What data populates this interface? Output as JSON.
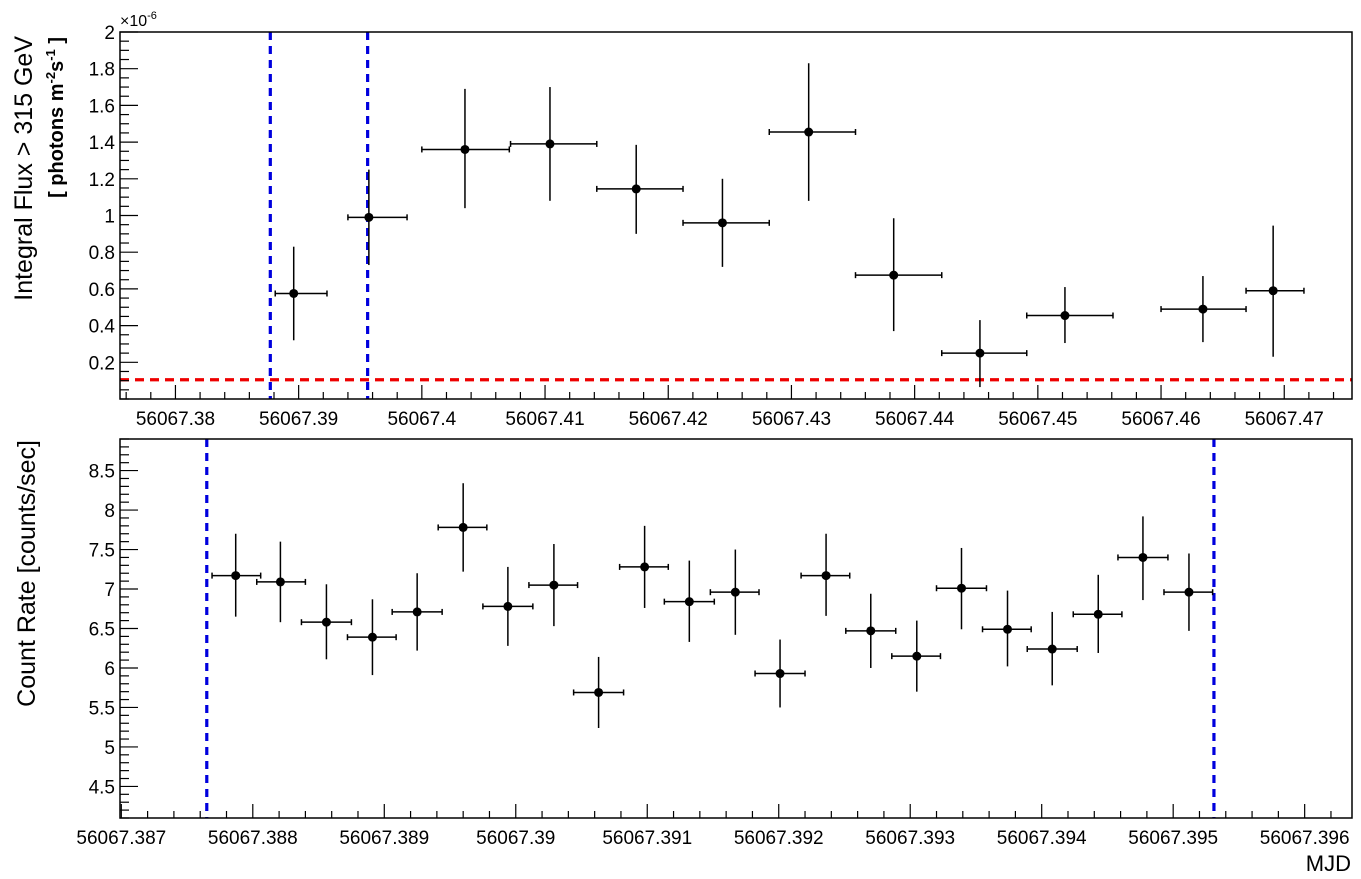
{
  "chart_data": [
    {
      "type": "scatter",
      "panel": "top",
      "ylabel": "Integral Flux > 315 GeV",
      "ylabel_units": {
        "open": "[ photons m",
        "sup1": "-2",
        "mid": "s",
        "sup2": "-1",
        "close": " ]"
      },
      "y_multiplier": {
        "base": "×10",
        "exp": "-6"
      },
      "xlim": [
        56067.3755,
        56067.4755
      ],
      "ylim": [
        0.0,
        2.0
      ],
      "x_ticks": [
        56067.38,
        56067.39,
        56067.4,
        56067.41,
        56067.42,
        56067.43,
        56067.44,
        56067.45,
        56067.46,
        56067.47
      ],
      "x_tick_labels": [
        "56067.38",
        "56067.39",
        "56067.4",
        "56067.41",
        "56067.42",
        "56067.43",
        "56067.44",
        "56067.45",
        "56067.46",
        "56067.47"
      ],
      "y_ticks": [
        0.2,
        0.4,
        0.6,
        0.8,
        1.0,
        1.2,
        1.4,
        1.6,
        1.8,
        2.0
      ],
      "y_tick_labels": [
        "0.2",
        "0.4",
        "0.6",
        "0.8",
        "1",
        "1.2",
        "1.4",
        "1.6",
        "1.8",
        "2"
      ],
      "series": [
        {
          "color": "#000000",
          "points": [
            {
              "x": 56067.3896,
              "y": 0.575,
              "xlo": 56067.3881,
              "xhi": 56067.3923,
              "ylo": 0.32,
              "yhi": 0.83
            },
            {
              "x": 56067.3957,
              "y": 0.99,
              "xlo": 56067.394,
              "xhi": 56067.3988,
              "ylo": 0.73,
              "yhi": 1.25
            },
            {
              "x": 56067.4035,
              "y": 1.36,
              "xlo": 56067.4,
              "xhi": 56067.4071,
              "ylo": 1.04,
              "yhi": 1.69
            },
            {
              "x": 56067.4104,
              "y": 1.39,
              "xlo": 56067.4072,
              "xhi": 56067.4142,
              "ylo": 1.08,
              "yhi": 1.7
            },
            {
              "x": 56067.4174,
              "y": 1.145,
              "xlo": 56067.4142,
              "xhi": 56067.4212,
              "ylo": 0.9,
              "yhi": 1.385
            },
            {
              "x": 56067.4244,
              "y": 0.96,
              "xlo": 56067.4212,
              "xhi": 56067.4282,
              "ylo": 0.72,
              "yhi": 1.2
            },
            {
              "x": 56067.4314,
              "y": 1.455,
              "xlo": 56067.4282,
              "xhi": 56067.4352,
              "ylo": 1.08,
              "yhi": 1.83
            },
            {
              "x": 56067.4383,
              "y": 0.675,
              "xlo": 56067.4352,
              "xhi": 56067.4422,
              "ylo": 0.37,
              "yhi": 0.985
            },
            {
              "x": 56067.4453,
              "y": 0.25,
              "xlo": 56067.4422,
              "xhi": 56067.4491,
              "ylo": 0.065,
              "yhi": 0.43
            },
            {
              "x": 56067.4522,
              "y": 0.455,
              "xlo": 56067.4491,
              "xhi": 56067.4561,
              "ylo": 0.305,
              "yhi": 0.61
            },
            {
              "x": 56067.4634,
              "y": 0.49,
              "xlo": 56067.46,
              "xhi": 56067.4669,
              "ylo": 0.31,
              "yhi": 0.67
            },
            {
              "x": 56067.4691,
              "y": 0.59,
              "xlo": 56067.4669,
              "xhi": 56067.4716,
              "ylo": 0.23,
              "yhi": 0.945
            }
          ]
        }
      ],
      "reference_lines": [
        {
          "orientation": "vertical",
          "x": 56067.3877,
          "color": "#0000dd",
          "style": "dashed"
        },
        {
          "orientation": "vertical",
          "x": 56067.3956,
          "color": "#0000dd",
          "style": "dashed"
        },
        {
          "orientation": "horizontal",
          "y": 0.105,
          "color": "#ee0000",
          "style": "dashed"
        }
      ]
    },
    {
      "type": "scatter",
      "panel": "bottom",
      "xlabel": "MJD",
      "ylabel": "Count Rate [counts/sec]",
      "xlim": [
        56067.38699,
        56067.39636
      ],
      "ylim": [
        4.1,
        8.9
      ],
      "x_ticks": [
        56067.387,
        56067.388,
        56067.389,
        56067.39,
        56067.391,
        56067.392,
        56067.393,
        56067.394,
        56067.395,
        56067.396
      ],
      "x_tick_labels": [
        "56067.387",
        "56067.388",
        "56067.389",
        "56067.39",
        "56067.391",
        "56067.392",
        "56067.393",
        "56067.394",
        "56067.395",
        "56067.396"
      ],
      "y_ticks": [
        4.5,
        5.0,
        5.5,
        6.0,
        6.5,
        7.0,
        7.5,
        8.0,
        8.5
      ],
      "y_tick_labels": [
        "4.5",
        "5",
        "5.5",
        "6",
        "6.5",
        "7",
        "7.5",
        "8",
        "8.5"
      ],
      "series": [
        {
          "color": "#000000",
          "points": [
            {
              "x": 56067.38787,
              "y": 7.17,
              "xlo": 56067.38769,
              "xhi": 56067.38806,
              "ylo": 6.65,
              "yhi": 7.7
            },
            {
              "x": 56067.38821,
              "y": 7.09,
              "xlo": 56067.38803,
              "xhi": 56067.3884,
              "ylo": 6.58,
              "yhi": 7.6
            },
            {
              "x": 56067.38856,
              "y": 6.58,
              "xlo": 56067.38837,
              "xhi": 56067.38875,
              "ylo": 6.11,
              "yhi": 7.06
            },
            {
              "x": 56067.38891,
              "y": 6.39,
              "xlo": 56067.38872,
              "xhi": 56067.38909,
              "ylo": 5.91,
              "yhi": 6.87
            },
            {
              "x": 56067.38925,
              "y": 6.71,
              "xlo": 56067.38906,
              "xhi": 56067.38944,
              "ylo": 6.22,
              "yhi": 7.2
            },
            {
              "x": 56067.3896,
              "y": 7.78,
              "xlo": 56067.38941,
              "xhi": 56067.38978,
              "ylo": 7.22,
              "yhi": 8.34
            },
            {
              "x": 56067.38994,
              "y": 6.78,
              "xlo": 56067.38975,
              "xhi": 56067.39013,
              "ylo": 6.28,
              "yhi": 7.28
            },
            {
              "x": 56067.39029,
              "y": 7.05,
              "xlo": 56067.3901,
              "xhi": 56067.39047,
              "ylo": 6.53,
              "yhi": 7.57
            },
            {
              "x": 56067.39063,
              "y": 5.69,
              "xlo": 56067.39044,
              "xhi": 56067.39082,
              "ylo": 5.24,
              "yhi": 6.14
            },
            {
              "x": 56067.39098,
              "y": 7.28,
              "xlo": 56067.39079,
              "xhi": 56067.39116,
              "ylo": 6.76,
              "yhi": 7.8
            },
            {
              "x": 56067.39132,
              "y": 6.84,
              "xlo": 56067.39113,
              "xhi": 56067.39151,
              "ylo": 6.33,
              "yhi": 7.36
            },
            {
              "x": 56067.39167,
              "y": 6.96,
              "xlo": 56067.39148,
              "xhi": 56067.39185,
              "ylo": 6.42,
              "yhi": 7.5
            },
            {
              "x": 56067.39201,
              "y": 5.93,
              "xlo": 56067.39182,
              "xhi": 56067.3922,
              "ylo": 5.5,
              "yhi": 6.36
            },
            {
              "x": 56067.39236,
              "y": 7.17,
              "xlo": 56067.39217,
              "xhi": 56067.39254,
              "ylo": 6.66,
              "yhi": 7.7
            },
            {
              "x": 56067.3927,
              "y": 6.47,
              "xlo": 56067.39251,
              "xhi": 56067.39289,
              "ylo": 6.0,
              "yhi": 6.94
            },
            {
              "x": 56067.39305,
              "y": 6.15,
              "xlo": 56067.39286,
              "xhi": 56067.39323,
              "ylo": 5.7,
              "yhi": 6.6
            },
            {
              "x": 56067.39339,
              "y": 7.01,
              "xlo": 56067.3932,
              "xhi": 56067.39358,
              "ylo": 6.49,
              "yhi": 7.52
            },
            {
              "x": 56067.39374,
              "y": 6.49,
              "xlo": 56067.39355,
              "xhi": 56067.39392,
              "ylo": 6.02,
              "yhi": 6.98
            },
            {
              "x": 56067.39408,
              "y": 6.24,
              "xlo": 56067.39389,
              "xhi": 56067.39427,
              "ylo": 5.78,
              "yhi": 6.71
            },
            {
              "x": 56067.39443,
              "y": 6.68,
              "xlo": 56067.39424,
              "xhi": 56067.39461,
              "ylo": 6.19,
              "yhi": 7.18
            },
            {
              "x": 56067.39477,
              "y": 7.4,
              "xlo": 56067.39458,
              "xhi": 56067.39496,
              "ylo": 6.86,
              "yhi": 7.92
            },
            {
              "x": 56067.39512,
              "y": 6.96,
              "xlo": 56067.39493,
              "xhi": 56067.3953,
              "ylo": 6.47,
              "yhi": 7.45
            }
          ]
        }
      ],
      "reference_lines": [
        {
          "orientation": "vertical",
          "x": 56067.38765,
          "color": "#0000dd",
          "style": "dashed"
        },
        {
          "orientation": "vertical",
          "x": 56067.39531,
          "color": "#0000dd",
          "style": "dashed"
        }
      ]
    }
  ]
}
